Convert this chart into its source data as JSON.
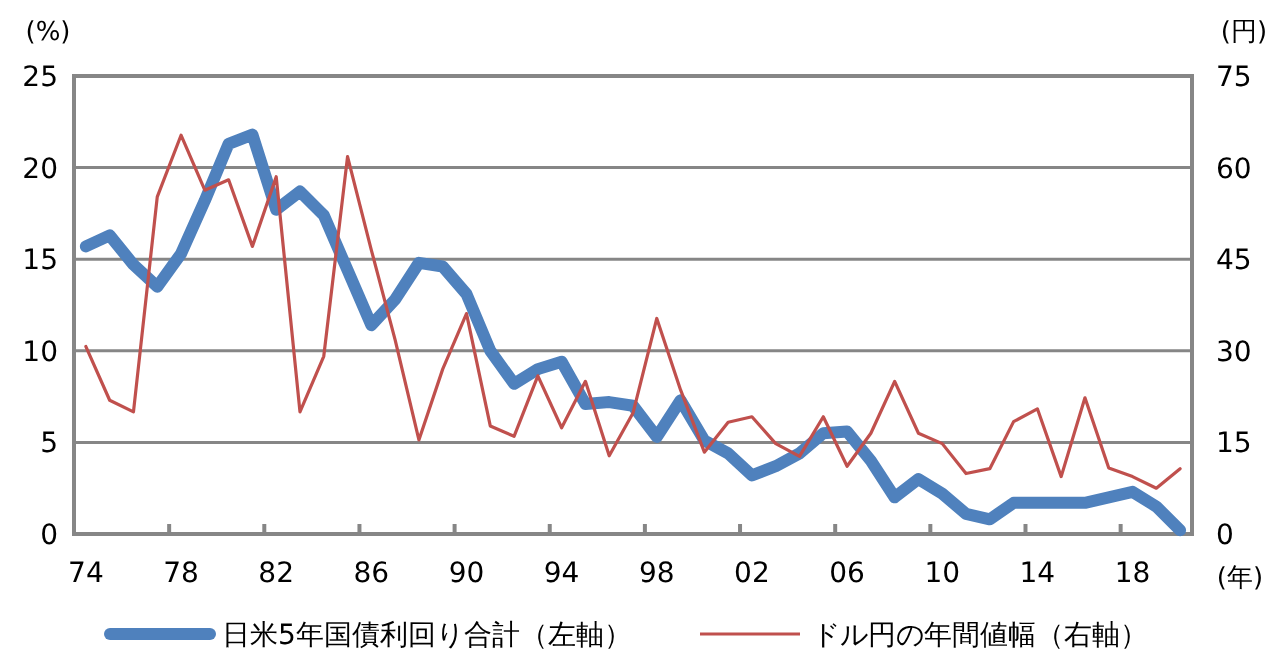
{
  "chart_data": {
    "type": "line",
    "categories": [
      "74",
      null,
      null,
      null,
      "78",
      null,
      null,
      null,
      "82",
      null,
      null,
      null,
      "86",
      null,
      null,
      null,
      "90",
      null,
      null,
      null,
      "94",
      null,
      null,
      null,
      "98",
      null,
      null,
      null,
      "02",
      null,
      null,
      null,
      "06",
      null,
      null,
      null,
      "10",
      null,
      null,
      null,
      "14",
      null,
      null,
      null,
      "18",
      null,
      null
    ],
    "series": [
      {
        "name": "日米5年国債利回り合計（左軸）",
        "color": "#4f81bd",
        "axis": "y",
        "values": [
          15.7,
          16.3,
          14.7,
          13.5,
          15.3,
          18.2,
          21.3,
          21.8,
          17.7,
          18.7,
          17.4,
          14.4,
          11.4,
          12.8,
          14.8,
          14.6,
          13.1,
          10.0,
          8.2,
          9.0,
          9.4,
          7.1,
          7.2,
          7.0,
          5.3,
          7.3,
          5.1,
          4.4,
          3.2,
          3.7,
          4.4,
          5.5,
          5.6,
          4.0,
          2.0,
          3.0,
          2.2,
          1.1,
          0.8,
          1.7,
          1.7,
          1.7,
          1.7,
          2.0,
          2.3,
          1.5,
          0.2
        ]
      },
      {
        "name": "ドル円の年間値幅（右軸）",
        "color": "#c0504d",
        "axis": "y2",
        "values": [
          30.7,
          21.9,
          20.0,
          55.2,
          65.3,
          56.3,
          58.0,
          47.1,
          58.5,
          20.0,
          29.1,
          61.8,
          46.5,
          31.8,
          15.4,
          27,
          36.1,
          17.7,
          16.0,
          25.9,
          17.4,
          25.0,
          12.8,
          19.8,
          35.3,
          23.6,
          13.4,
          18.3,
          19.2,
          14.8,
          12.7,
          19.2,
          11.1,
          16.5,
          25.0,
          16.5,
          14.8,
          9.9,
          10.7,
          18.4,
          20.5,
          9.4,
          22.3,
          10.8,
          9.4,
          7.5,
          10.7
        ]
      }
    ],
    "ylabel": "(%)",
    "y2label": "(円)",
    "xlabel": "(年)",
    "ylim": [
      0,
      25
    ],
    "yticks": [
      0,
      5,
      10,
      15,
      20,
      25
    ],
    "y2lim": [
      0,
      75
    ],
    "y2ticks": [
      0,
      15,
      30,
      45,
      60,
      75
    ],
    "grid": "y",
    "legend": "bottom"
  }
}
